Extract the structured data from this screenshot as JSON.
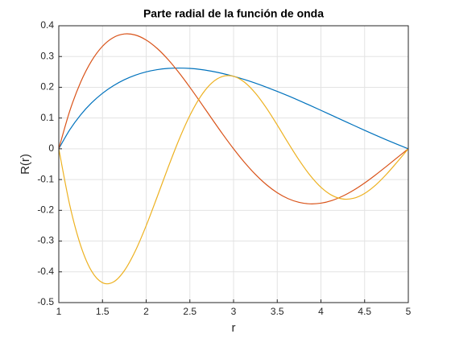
{
  "chart_data": {
    "type": "line",
    "title": "Parte radial de la función de onda",
    "xlabel": "r",
    "ylabel": "R(r)",
    "x": [
      1,
      1.125,
      1.25,
      1.375,
      1.5,
      1.625,
      1.75,
      1.875,
      2,
      2.125,
      2.25,
      2.375,
      2.5,
      2.625,
      2.75,
      2.875,
      3,
      3.125,
      3.25,
      3.375,
      3.5,
      3.625,
      3.75,
      3.875,
      4,
      4.125,
      4.25,
      4.375,
      4.5,
      4.625,
      4.75,
      4.875,
      5
    ],
    "series": [
      {
        "color": "#0072BD",
        "values": [
          0,
          0.0616,
          0.1104,
          0.1493,
          0.1804,
          0.2051,
          0.2245,
          0.2392,
          0.25,
          0.2573,
          0.2613,
          0.2625,
          0.2613,
          0.2578,
          0.2522,
          0.2447,
          0.2357,
          0.2252,
          0.2134,
          0.2005,
          0.1866,
          0.1721,
          0.1568,
          0.1411,
          0.125,
          0.1087,
          0.0925,
          0.0762,
          0.0601,
          0.0444,
          0.0291,
          0.0142,
          0
        ]
      },
      {
        "color": "#D95319",
        "values": [
          0,
          0.1226,
          0.2165,
          0.2857,
          0.3333,
          0.3618,
          0.3733,
          0.3699,
          0.3536,
          0.3264,
          0.2904,
          0.2475,
          0.2,
          0.1497,
          0.0984,
          0.048,
          0,
          -0.0442,
          -0.0833,
          -0.1164,
          -0.1428,
          -0.1622,
          -0.1742,
          -0.179,
          -0.1768,
          -0.1681,
          -0.1537,
          -0.1344,
          -0.1111,
          -0.0849,
          -0.057,
          -0.0283,
          0
        ]
      },
      {
        "color": "#EDB120",
        "values": [
          0,
          -0.1825,
          -0.3143,
          -0.3976,
          -0.4355,
          -0.433,
          -0.3963,
          -0.3326,
          -0.25,
          -0.1569,
          -0.0613,
          0.0292,
          0.1082,
          0.1709,
          0.2138,
          0.2353,
          0.2357,
          0.2165,
          0.1809,
          0.1329,
          0.0773,
          0.0191,
          -0.0368,
          -0.086,
          -0.125,
          -0.1512,
          -0.1632,
          -0.1608,
          -0.1451,
          -0.1182,
          -0.0827,
          -0.0421,
          0
        ]
      }
    ],
    "xlim": [
      1,
      5
    ],
    "xticks": [
      1,
      1.5,
      2,
      2.5,
      3,
      3.5,
      4,
      4.5,
      5
    ],
    "ylim": [
      -0.5,
      0.4
    ],
    "yticks": [
      -0.5,
      -0.4,
      -0.3,
      -0.2,
      -0.1,
      0,
      0.1,
      0.2,
      0.3,
      0.4
    ],
    "grid": true
  }
}
